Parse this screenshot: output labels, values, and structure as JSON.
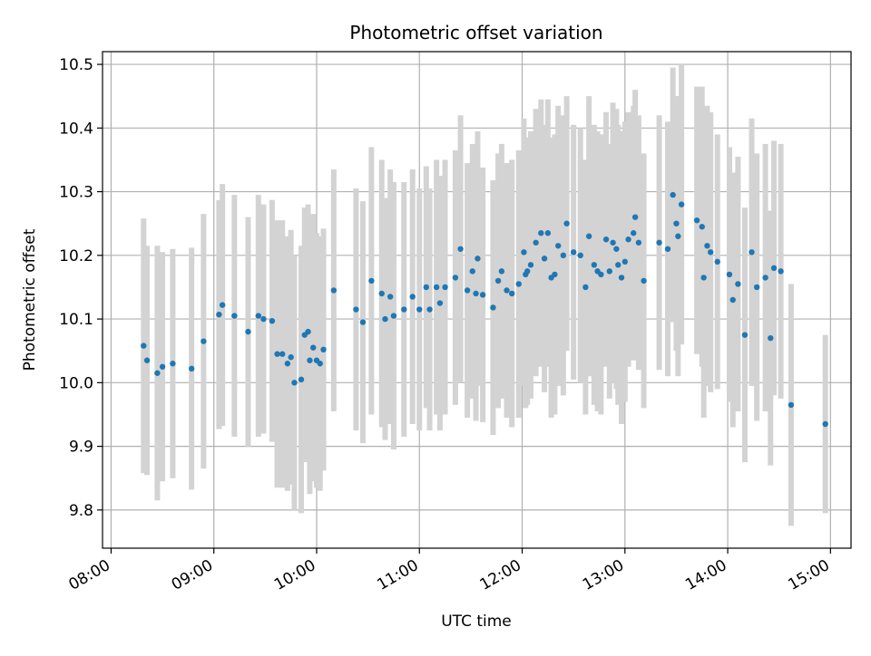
{
  "chart_data": {
    "type": "scatter",
    "title": "Photometric offset variation",
    "xlabel": "UTC time",
    "ylabel": "Photometric offset",
    "xlim": [
      "07:55",
      "15:12"
    ],
    "ylim": [
      9.74,
      10.52
    ],
    "grid": true,
    "legend": "none",
    "x_ticks": [
      "08:00",
      "09:00",
      "10:00",
      "11:00",
      "12:00",
      "13:00",
      "14:00",
      "15:00"
    ],
    "y_ticks": [
      9.8,
      9.9,
      10.0,
      10.1,
      10.2,
      10.3,
      10.4,
      10.5
    ],
    "colors": {
      "points": "#1f77b4",
      "errorbars": "#d3d3d3",
      "grid": "#b0b0b0"
    },
    "series": [
      {
        "x": [
          "08:19",
          "08:21",
          "08:27",
          "08:30",
          "08:36",
          "08:47",
          "08:54",
          "09:03",
          "09:05",
          "09:12",
          "09:20",
          "09:26",
          "09:29",
          "09:34",
          "09:37",
          "09:40",
          "09:43",
          "09:45",
          "09:47",
          "09:51",
          "09:53",
          "09:55",
          "09:56",
          "09:58",
          "10:00",
          "10:02",
          "10:04",
          "10:10",
          "10:23",
          "10:27",
          "10:32",
          "10:38",
          "10:40",
          "10:43",
          "10:45",
          "10:51",
          "10:56",
          "11:00",
          "11:04",
          "11:06",
          "11:10",
          "11:12",
          "11:15",
          "11:21",
          "11:24",
          "11:28",
          "11:31",
          "11:33",
          "11:34",
          "11:37",
          "11:43",
          "11:46",
          "11:48",
          "11:51",
          "11:54",
          "11:58",
          "12:01",
          "12:02",
          "12:03",
          "12:05",
          "12:08",
          "12:11",
          "12:13",
          "12:15",
          "12:17",
          "12:19",
          "12:21",
          "12:24",
          "12:26",
          "12:30",
          "12:34",
          "12:37",
          "12:39",
          "12:42",
          "12:44",
          "12:46",
          "12:49",
          "12:51",
          "12:53",
          "12:55",
          "12:56",
          "12:58",
          "13:00",
          "13:02",
          "13:05",
          "13:06",
          "13:08",
          "13:11",
          "13:20",
          "13:25",
          "13:28",
          "13:30",
          "13:31",
          "13:33",
          "13:42",
          "13:45",
          "13:46",
          "13:48",
          "13:50",
          "13:54",
          "14:01",
          "14:03",
          "14:06",
          "14:10",
          "14:14",
          "14:17",
          "14:22",
          "14:25",
          "14:27",
          "14:31",
          "14:37",
          "14:57"
        ],
        "y": [
          10.058,
          10.035,
          10.015,
          10.025,
          10.03,
          10.022,
          10.065,
          10.107,
          10.122,
          10.105,
          10.08,
          10.105,
          10.1,
          10.097,
          10.045,
          10.045,
          10.03,
          10.04,
          10.0,
          10.005,
          10.075,
          10.08,
          10.035,
          10.055,
          10.035,
          10.03,
          10.052,
          10.145,
          10.115,
          10.095,
          10.16,
          10.14,
          10.1,
          10.135,
          10.105,
          10.115,
          10.135,
          10.115,
          10.15,
          10.115,
          10.15,
          10.125,
          10.15,
          10.165,
          10.21,
          10.145,
          10.175,
          10.14,
          10.195,
          10.138,
          10.118,
          10.16,
          10.175,
          10.145,
          10.14,
          10.155,
          10.205,
          10.17,
          10.175,
          10.185,
          10.22,
          10.235,
          10.195,
          10.235,
          10.165,
          10.17,
          10.215,
          10.2,
          10.25,
          10.205,
          10.2,
          10.15,
          10.23,
          10.185,
          10.175,
          10.17,
          10.225,
          10.175,
          10.22,
          10.21,
          10.185,
          10.165,
          10.19,
          10.225,
          10.235,
          10.26,
          10.22,
          10.16,
          10.22,
          10.21,
          10.295,
          10.25,
          10.23,
          10.28,
          10.255,
          10.245,
          10.165,
          10.215,
          10.205,
          10.19,
          10.17,
          10.13,
          10.155,
          10.075,
          10.205,
          10.15,
          10.165,
          10.07,
          10.18,
          10.175,
          9.965,
          9.935
        ],
        "err": [
          0.2,
          0.18,
          0.2,
          0.18,
          0.18,
          0.19,
          0.2,
          0.18,
          0.19,
          0.19,
          0.18,
          0.19,
          0.18,
          0.19,
          0.21,
          0.21,
          0.2,
          0.2,
          0.2,
          0.21,
          0.2,
          0.2,
          0.21,
          0.21,
          0.2,
          0.2,
          0.19,
          0.19,
          0.19,
          0.19,
          0.21,
          0.21,
          0.19,
          0.2,
          0.21,
          0.2,
          0.2,
          0.19,
          0.19,
          0.19,
          0.2,
          0.2,
          0.2,
          0.2,
          0.21,
          0.2,
          0.2,
          0.2,
          0.2,
          0.2,
          0.2,
          0.2,
          0.2,
          0.2,
          0.21,
          0.21,
          0.21,
          0.21,
          0.21,
          0.21,
          0.21,
          0.21,
          0.21,
          0.21,
          0.22,
          0.22,
          0.22,
          0.22,
          0.2,
          0.2,
          0.2,
          0.2,
          0.22,
          0.22,
          0.22,
          0.22,
          0.2,
          0.2,
          0.22,
          0.22,
          0.22,
          0.23,
          0.22,
          0.2,
          0.2,
          0.2,
          0.2,
          0.2,
          0.2,
          0.2,
          0.2,
          0.2,
          0.22,
          0.22,
          0.21,
          0.22,
          0.22,
          0.22,
          0.22,
          0.2,
          0.2,
          0.2,
          0.2,
          0.2,
          0.21,
          0.21,
          0.21,
          0.2,
          0.2,
          0.2,
          0.19,
          0.14
        ]
      }
    ]
  }
}
